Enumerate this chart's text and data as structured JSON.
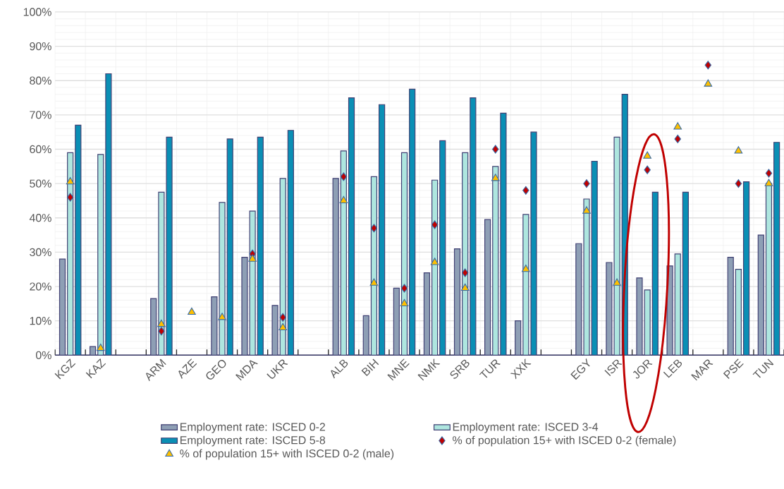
{
  "chart_data": {
    "type": "bar",
    "categories": [
      "KGZ",
      "KAZ",
      null,
      "ARM",
      "AZE",
      "GEO",
      "MDA",
      "UKR",
      null,
      "ALB",
      "BIH",
      "MNE",
      "NMK",
      "SRB",
      "TUR",
      "XXK",
      null,
      "EGY",
      "ISR",
      "JOR",
      "LEB",
      "MAR",
      "PSE",
      "TUN"
    ],
    "series": [
      {
        "name": "Employment rate: ISCED 0-2",
        "color": "#8e9fb5",
        "values": [
          28,
          2.5,
          null,
          16.5,
          null,
          17,
          28.5,
          14.5,
          null,
          51.5,
          11.5,
          19.5,
          24,
          31,
          39.5,
          10,
          null,
          32.5,
          27,
          22.5,
          26,
          null,
          28.5,
          35
        ]
      },
      {
        "name": "Employment rate: ISCED 3-4",
        "color": "#aee6df",
        "values": [
          59,
          58.5,
          null,
          47.5,
          null,
          44.5,
          42,
          51.5,
          null,
          59.5,
          52,
          59,
          51,
          59,
          55,
          41,
          null,
          45.5,
          63.5,
          19,
          29.5,
          null,
          25,
          50
        ]
      },
      {
        "name": "Employment rate: ISCED 5-8",
        "color": "#0a8fb5",
        "values": [
          67,
          82,
          null,
          63.5,
          null,
          63,
          63.5,
          65.5,
          null,
          75,
          73,
          77.5,
          62.5,
          75,
          70.5,
          65,
          null,
          56.5,
          76,
          47.5,
          47.5,
          null,
          50.5,
          62
        ]
      },
      {
        "name": "% of population 15+ with ISCED 0-2 (female)",
        "type": "scatter",
        "marker": "diamond",
        "color": "#c00000",
        "values": [
          46,
          null,
          null,
          7,
          null,
          null,
          29.5,
          11,
          null,
          52,
          37,
          19.5,
          38,
          24,
          60,
          48,
          null,
          50,
          null,
          54,
          63,
          84.5,
          50,
          53
        ]
      },
      {
        "name": "% of population 15+ with ISCED 0-2 (male)",
        "type": "scatter",
        "marker": "triangle",
        "color": "#ffc000",
        "values": [
          50.5,
          2,
          null,
          9,
          12.5,
          11,
          28,
          8,
          null,
          45,
          21,
          15,
          27,
          19.5,
          51.5,
          25,
          null,
          42,
          21,
          58,
          66.5,
          79,
          59.5,
          50
        ]
      }
    ],
    "ylim": [
      0,
      100
    ],
    "yticks": [
      {
        "value": 0,
        "label": "0%"
      },
      {
        "value": 10,
        "label": "10%"
      },
      {
        "value": 20,
        "label": "20%"
      },
      {
        "value": 30,
        "label": "30%"
      },
      {
        "value": 40,
        "label": "40%"
      },
      {
        "value": 50,
        "label": "50%"
      },
      {
        "value": 60,
        "label": "60%"
      },
      {
        "value": 70,
        "label": "70%"
      },
      {
        "value": 80,
        "label": "80%"
      },
      {
        "value": 90,
        "label": "90%"
      },
      {
        "value": 100,
        "label": "100%"
      }
    ],
    "grid": true,
    "legend": "bottom"
  }
}
